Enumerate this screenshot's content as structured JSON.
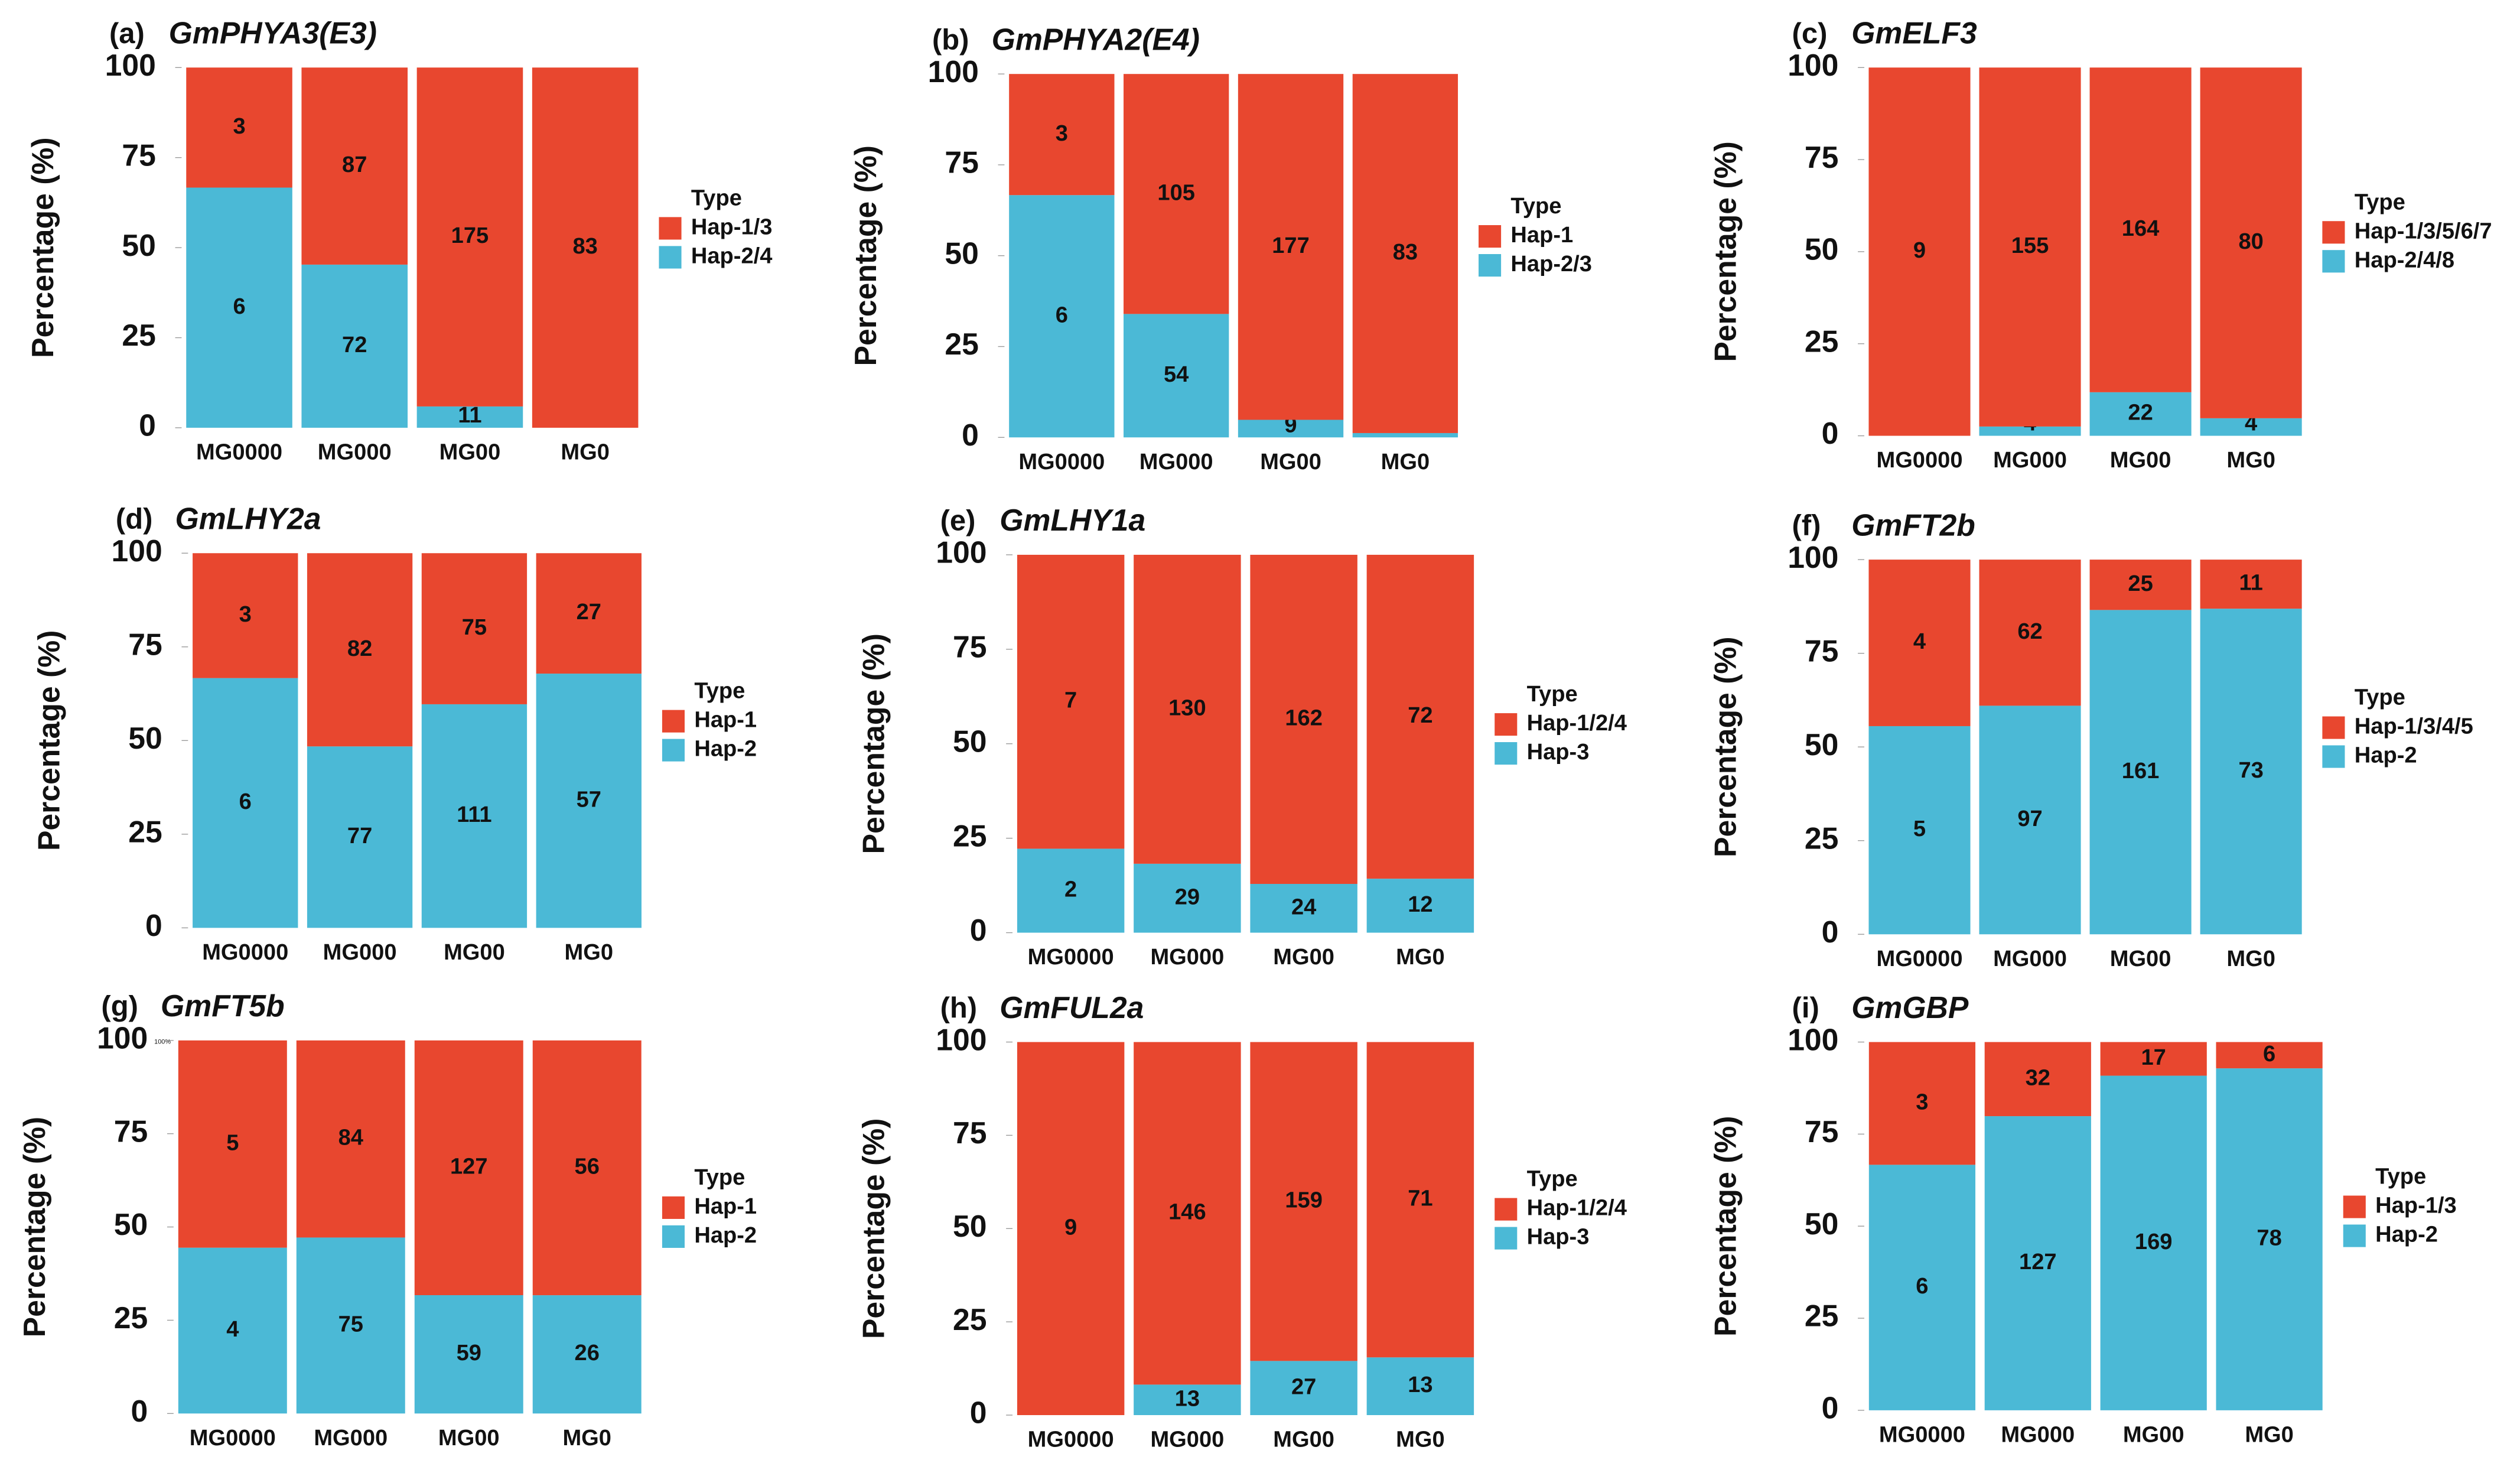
{
  "chart_data": [
    {
      "type": "bar",
      "stacking": "percent",
      "panel": "(a)",
      "title": "GmPHYA3(E3)",
      "ylabel": "Percentage (%)",
      "legend_title": "Type",
      "categories": [
        "MG0000",
        "MG000",
        "MG00",
        "MG0"
      ],
      "ylim": [
        0,
        100
      ],
      "yticks": [
        0,
        25,
        50,
        75,
        100
      ],
      "series": [
        {
          "name": "Hap-1/3",
          "color": "#e8472f",
          "values": [
            3,
            87,
            175,
            83
          ]
        },
        {
          "name": "Hap-2/4",
          "color": "#4bb9d6",
          "values": [
            6,
            72,
            11,
            null
          ]
        }
      ]
    },
    {
      "type": "bar",
      "stacking": "percent",
      "panel": "(b)",
      "title": "GmPHYA2(E4)",
      "ylabel": "Percentage (%)",
      "legend_title": "Type",
      "categories": [
        "MG0000",
        "MG000",
        "MG00",
        "MG0"
      ],
      "ylim": [
        0,
        100
      ],
      "yticks": [
        0,
        25,
        50,
        75,
        100
      ],
      "series": [
        {
          "name": "Hap-1",
          "color": "#e8472f",
          "values": [
            3,
            105,
            177,
            83
          ]
        },
        {
          "name": "Hap-2/3",
          "color": "#4bb9d6",
          "values": [
            6,
            54,
            9,
            1
          ]
        }
      ]
    },
    {
      "type": "bar",
      "stacking": "percent",
      "panel": "(c)",
      "title": "GmELF3",
      "ylabel": "Percentage (%)",
      "legend_title": "Type",
      "categories": [
        "MG0000",
        "MG000",
        "MG00",
        "MG0"
      ],
      "ylim": [
        0,
        100
      ],
      "yticks": [
        0,
        25,
        50,
        75,
        100
      ],
      "series": [
        {
          "name": "Hap-1/3/5/6/7",
          "color": "#e8472f",
          "values": [
            9,
            155,
            164,
            80
          ]
        },
        {
          "name": "Hap-2/4/8",
          "color": "#4bb9d6",
          "values": [
            null,
            4,
            22,
            4
          ]
        }
      ]
    },
    {
      "type": "bar",
      "stacking": "percent",
      "panel": "(d)",
      "title": "GmLHY2a",
      "ylabel": "Percentage (%)",
      "legend_title": "Type",
      "categories": [
        "MG0000",
        "MG000",
        "MG00",
        "MG0"
      ],
      "ylim": [
        0,
        100
      ],
      "yticks": [
        0,
        25,
        50,
        75,
        100
      ],
      "series": [
        {
          "name": "Hap-1",
          "color": "#e8472f",
          "values": [
            3,
            82,
            75,
            27
          ]
        },
        {
          "name": "Hap-2",
          "color": "#4bb9d6",
          "values": [
            6,
            77,
            111,
            57
          ]
        }
      ]
    },
    {
      "type": "bar",
      "stacking": "percent",
      "panel": "(e)",
      "title": "GmLHY1a",
      "ylabel": "Percentage (%)",
      "legend_title": "Type",
      "categories": [
        "MG0000",
        "MG000",
        "MG00",
        "MG0"
      ],
      "ylim": [
        0,
        100
      ],
      "yticks": [
        0,
        25,
        50,
        75,
        100
      ],
      "series": [
        {
          "name": "Hap-1/2/4",
          "color": "#e8472f",
          "values": [
            7,
            130,
            162,
            72
          ]
        },
        {
          "name": "Hap-3",
          "color": "#4bb9d6",
          "values": [
            2,
            29,
            24,
            12
          ]
        }
      ]
    },
    {
      "type": "bar",
      "stacking": "percent",
      "panel": "(f)",
      "title": "GmFT2b",
      "ylabel": "Percentage (%)",
      "legend_title": "Type",
      "categories": [
        "MG0000",
        "MG000",
        "MG00",
        "MG0"
      ],
      "ylim": [
        0,
        100
      ],
      "yticks": [
        0,
        25,
        50,
        75,
        100
      ],
      "series": [
        {
          "name": "Hap-1/3/4/5",
          "color": "#e8472f",
          "values": [
            4,
            62,
            25,
            11
          ]
        },
        {
          "name": "Hap-2",
          "color": "#4bb9d6",
          "values": [
            5,
            97,
            161,
            73
          ]
        }
      ]
    },
    {
      "type": "bar",
      "stacking": "percent",
      "panel": "(g)",
      "title": "GmFT5b",
      "ylabel": "Percentage (%)",
      "legend_title": "Type",
      "annotation": "100%",
      "categories": [
        "MG0000",
        "MG000",
        "MG00",
        "MG0"
      ],
      "ylim": [
        0,
        100
      ],
      "yticks": [
        0,
        25,
        50,
        75,
        100
      ],
      "series": [
        {
          "name": "Hap-1",
          "color": "#e8472f",
          "values": [
            5,
            84,
            127,
            56
          ]
        },
        {
          "name": "Hap-2",
          "color": "#4bb9d6",
          "values": [
            4,
            75,
            59,
            26
          ]
        }
      ]
    },
    {
      "type": "bar",
      "stacking": "percent",
      "panel": "(h)",
      "title": "GmFUL2a",
      "ylabel": "Percentage (%)",
      "legend_title": "Type",
      "categories": [
        "MG0000",
        "MG000",
        "MG00",
        "MG0"
      ],
      "ylim": [
        0,
        100
      ],
      "yticks": [
        0,
        25,
        50,
        75,
        100
      ],
      "series": [
        {
          "name": "Hap-1/2/4",
          "color": "#e8472f",
          "values": [
            9,
            146,
            159,
            71
          ]
        },
        {
          "name": "Hap-3",
          "color": "#4bb9d6",
          "values": [
            null,
            13,
            27,
            13
          ]
        }
      ]
    },
    {
      "type": "bar",
      "stacking": "percent",
      "panel": "(i)",
      "title": "GmGBP",
      "ylabel": "Percentage (%)",
      "legend_title": "Type",
      "categories": [
        "MG0000",
        "MG000",
        "MG00",
        "MG0"
      ],
      "ylim": [
        0,
        100
      ],
      "yticks": [
        0,
        25,
        50,
        75,
        100
      ],
      "series": [
        {
          "name": "Hap-1/3",
          "color": "#e8472f",
          "values": [
            3,
            32,
            17,
            6
          ]
        },
        {
          "name": "Hap-2",
          "color": "#4bb9d6",
          "values": [
            6,
            127,
            169,
            78
          ]
        }
      ]
    }
  ]
}
